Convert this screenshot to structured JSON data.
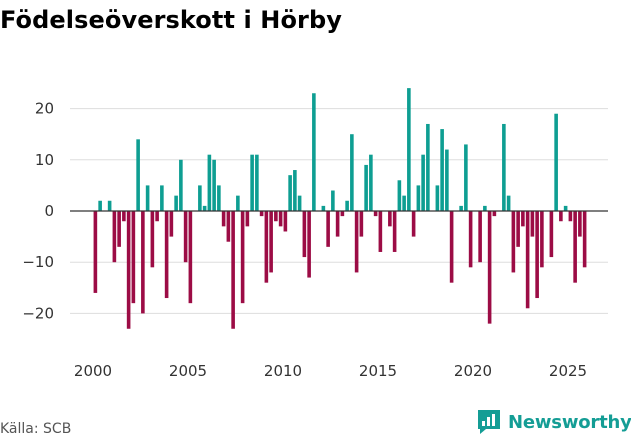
{
  "title": "Födelseöverskott i Hörby",
  "source": "Källa: SCB",
  "brand": "Newsworthy",
  "colors": {
    "positive": "#0e9e92",
    "negative": "#9c0c45",
    "grid": "#dddddd",
    "zero_line": "#333333",
    "brand": "#149d95"
  },
  "chart_data": {
    "type": "bar",
    "title": "Födelseöverskott i Hörby",
    "xlabel": "",
    "ylabel": "",
    "ylim": [
      -25,
      27
    ],
    "xlim": [
      1998.5,
      2027.2
    ],
    "y_ticks": [
      -20,
      -10,
      0,
      10,
      20
    ],
    "x_ticks": [
      2000,
      2005,
      2010,
      2015,
      2020,
      2025
    ],
    "grid": true,
    "legend": "none",
    "period": "quarterly",
    "x": [
      2000.125,
      2000.375,
      2000.625,
      2000.875,
      2001.125,
      2001.375,
      2001.625,
      2001.875,
      2002.125,
      2002.375,
      2002.625,
      2002.875,
      2003.125,
      2003.375,
      2003.625,
      2003.875,
      2004.125,
      2004.375,
      2004.625,
      2004.875,
      2005.125,
      2005.375,
      2005.625,
      2005.875,
      2006.125,
      2006.375,
      2006.625,
      2006.875,
      2007.125,
      2007.375,
      2007.625,
      2007.875,
      2008.125,
      2008.375,
      2008.625,
      2008.875,
      2009.125,
      2009.375,
      2009.625,
      2009.875,
      2010.125,
      2010.375,
      2010.625,
      2010.875,
      2011.125,
      2011.375,
      2011.625,
      2011.875,
      2012.125,
      2012.375,
      2012.625,
      2012.875,
      2013.125,
      2013.375,
      2013.625,
      2013.875,
      2014.125,
      2014.375,
      2014.625,
      2014.875,
      2015.125,
      2015.375,
      2015.625,
      2015.875,
      2016.125,
      2016.375,
      2016.625,
      2016.875,
      2017.125,
      2017.375,
      2017.625,
      2017.875,
      2018.125,
      2018.375,
      2018.625,
      2018.875,
      2019.125,
      2019.375,
      2019.625,
      2019.875,
      2020.125,
      2020.375,
      2020.625,
      2020.875,
      2021.125,
      2021.375,
      2021.625,
      2021.875,
      2022.125,
      2022.375,
      2022.625,
      2022.875,
      2023.125,
      2023.375,
      2023.625,
      2023.875,
      2024.125,
      2024.375,
      2024.625,
      2024.875,
      2025.125,
      2025.375,
      2025.625,
      2025.875
    ],
    "values": [
      -16,
      2,
      0,
      2,
      -10,
      -7,
      -2,
      -23,
      -18,
      14,
      -20,
      5,
      -11,
      -2,
      5,
      -17,
      -5,
      3,
      10,
      -10,
      -18,
      0,
      5,
      1,
      11,
      10,
      5,
      -3,
      -6,
      -23,
      3,
      -18,
      -3,
      11,
      11,
      -1,
      -14,
      -12,
      -2,
      -3,
      -4,
      7,
      8,
      3,
      -9,
      -13,
      23,
      0,
      1,
      -7,
      4,
      -5,
      -1,
      2,
      15,
      -12,
      -5,
      9,
      11,
      -1,
      -8,
      0,
      -3,
      -8,
      6,
      3,
      24,
      -5,
      5,
      11,
      17,
      0,
      5,
      16,
      12,
      -14,
      0,
      1,
      13,
      -11,
      0,
      -10,
      1,
      -22,
      -1,
      0,
      17,
      3,
      -12,
      -7,
      -3,
      -19,
      -5,
      -17,
      -11,
      0,
      -9,
      19,
      -2,
      1,
      -2,
      -14,
      -5,
      -11
    ]
  }
}
